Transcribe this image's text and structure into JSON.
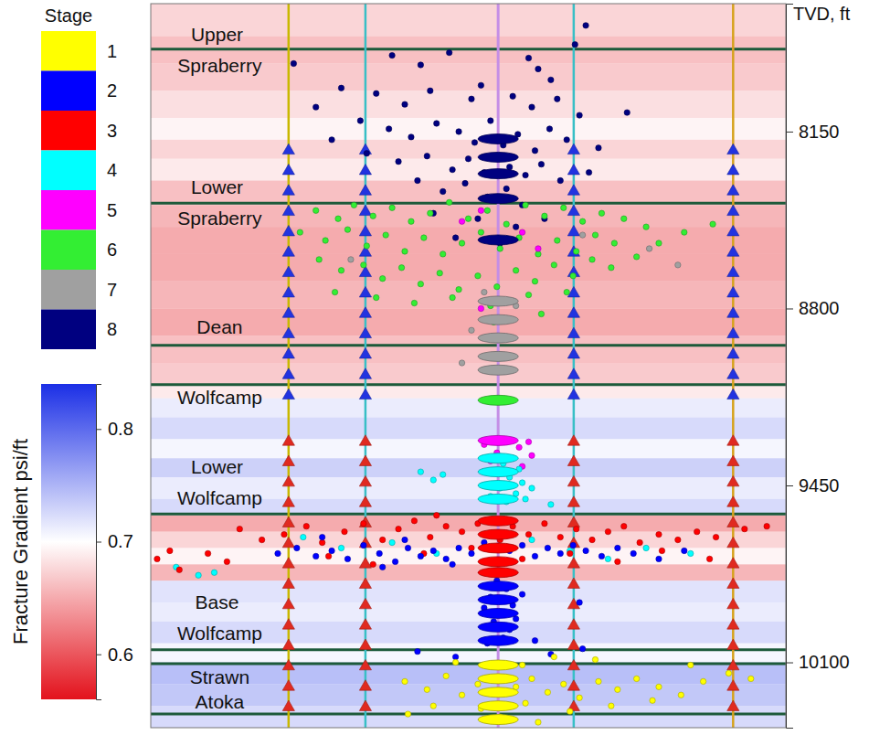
{
  "chart_data": {
    "type": "scatter",
    "y_label": "TVD, ft",
    "xlim": [
      0,
      100
    ],
    "ylim": [
      7680,
      10340
    ],
    "yticks": [
      8150,
      8800,
      9450,
      10100
    ],
    "tick_labels": "y",
    "legend": "left",
    "legend_title": "Stage",
    "marker": "circle",
    "series": [
      {
        "name": "1",
        "color": "#ffff00",
        "x": [
          40.0,
          43.5,
          46.5,
          49.0,
          51.5,
          57.5,
          60.0,
          62.5,
          65.0,
          67.5,
          70.5,
          73.5,
          76.5,
          80.0,
          83.5,
          87.0,
          91.0,
          94.5,
          44.5,
          52.0,
          59.0,
          66.0,
          72.5,
          79.0,
          58.5,
          63.5,
          70.0,
          48.0,
          85.0,
          55.0,
          61.0,
          40.5
        ],
        "y": [
          10170,
          10200,
          10150,
          10220,
          10180,
          10190,
          10160,
          10210,
          10180,
          10230,
          10170,
          10200,
          10160,
          10190,
          10220,
          10170,
          10140,
          10160,
          10260,
          10270,
          10250,
          10280,
          10260,
          10240,
          10110,
          10080,
          10090,
          10100,
          10110,
          10300,
          10320,
          10290
        ],
        "perforations": [
          10110,
          10160,
          10210,
          10260,
          10310
        ]
      },
      {
        "name": "2",
        "color": "#0000ff",
        "x": [
          20.0,
          23.0,
          26.0,
          28.5,
          31.0,
          33.5,
          36.0,
          38.5,
          40.5,
          42.5,
          44.5,
          46.5,
          48.5,
          50.5,
          52.5,
          56.5,
          58.5,
          60.5,
          62.5,
          64.5,
          66.5,
          68.5,
          71.0,
          73.5,
          76.0,
          80.0,
          84.0,
          40.0,
          47.5,
          36.5,
          27.0,
          54.5,
          56.0,
          53.5,
          57.0,
          55.0,
          54.0,
          56.5,
          55.5,
          53.0,
          57.5,
          52.5,
          58.5,
          60.5,
          42.0,
          48.0,
          63.0,
          68.0,
          67.5
        ],
        "y": [
          9700,
          9680,
          9710,
          9690,
          9720,
          9670,
          9700,
          9730,
          9680,
          9710,
          9690,
          9720,
          9680,
          9700,
          9660,
          9690,
          9670,
          9710,
          9680,
          9700,
          9670,
          9690,
          9710,
          9680,
          9700,
          9720,
          9690,
          9650,
          9740,
          9750,
          9640,
          9800,
          9830,
          9860,
          9890,
          9920,
          9950,
          9980,
          10010,
          10030,
          9940,
          9900,
          9850,
          10020,
          10060,
          10080,
          10070,
          10050,
          9880
        ],
        "perforations": [
          9820,
          9870,
          9920,
          9970,
          10020
        ]
      },
      {
        "name": "3",
        "color": "#ff0000",
        "x": [
          1.0,
          4.5,
          3.0,
          14.0,
          17.5,
          21.0,
          24.5,
          27.0,
          30.5,
          33.5,
          36.5,
          39.0,
          41.5,
          44.0,
          46.5,
          49.0,
          51.5,
          57.0,
          59.5,
          62.0,
          64.5,
          67.0,
          69.5,
          72.0,
          74.5,
          77.0,
          80.0,
          83.0,
          86.0,
          89.0,
          93.5,
          97.0,
          9.0,
          12.0,
          28.0,
          35.0,
          43.0,
          50.5,
          58.5,
          66.0,
          73.5,
          80.5,
          88.0,
          45.0,
          55.0
        ],
        "y": [
          9720,
          9760,
          9690,
          9610,
          9650,
          9630,
          9600,
          9660,
          9620,
          9590,
          9650,
          9610,
          9580,
          9640,
          9600,
          9620,
          9590,
          9600,
          9630,
          9590,
          9640,
          9610,
          9650,
          9620,
          9600,
          9660,
          9630,
          9650,
          9620,
          9640,
          9610,
          9600,
          9700,
          9730,
          9710,
          9740,
          9700,
          9680,
          9720,
          9700,
          9730,
          9690,
          9720,
          9560,
          9650
        ],
        "perforations": [
          9580,
          9630,
          9680,
          9730,
          9770
        ]
      },
      {
        "name": "4",
        "color": "#00ffff",
        "x": [
          54.0,
          56.5,
          58.5,
          55.0,
          57.5,
          53.5,
          59.0,
          56.0,
          55.5,
          58.0,
          42.5,
          44.5,
          46.0,
          52.5,
          60.0,
          7.5,
          10.0,
          4.0,
          24.0,
          30.0,
          38.0,
          45.0,
          60.0,
          66.0,
          72.0,
          78.0,
          85.0,
          63.0
        ],
        "y": [
          9400,
          9420,
          9440,
          9460,
          9480,
          9490,
          9500,
          9510,
          9370,
          9390,
          9400,
          9430,
          9410,
          9450,
          9460,
          9780,
          9770,
          9750,
          9640,
          9680,
          9660,
          9700,
          9650,
          9690,
          9720,
          9680,
          9700,
          9520
        ],
        "perforations": [
          9350,
          9400,
          9450,
          9500
        ]
      },
      {
        "name": "5",
        "color": "#ff00ff",
        "x": [
          52.0,
          58.5,
          61.0,
          49.0,
          56.0,
          58.0,
          54.5,
          57.0,
          59.5,
          52.5,
          53.5,
          58.5,
          52.0,
          55.5,
          60.0
        ],
        "y": [
          8440,
          8520,
          8580,
          8480,
          9290,
          9310,
          9330,
          9350,
          9290,
          9300,
          9360,
          9380,
          8800,
          8910,
          9340
        ],
        "perforations": [
          9285
        ]
      },
      {
        "name": "6",
        "color": "#33ee33",
        "x": [
          26.0,
          29.5,
          32.0,
          35.0,
          38.0,
          41.0,
          44.0,
          47.0,
          50.0,
          53.0,
          56.0,
          59.0,
          62.0,
          65.0,
          68.0,
          71.0,
          74.5,
          78.0,
          80.0,
          23.5,
          27.5,
          31.0,
          34.0,
          37.0,
          40.0,
          43.0,
          46.0,
          49.0,
          52.0,
          55.0,
          58.0,
          61.0,
          64.0,
          67.0,
          70.0,
          73.0,
          76.5,
          26.5,
          30.0,
          33.5,
          36.5,
          39.5,
          42.5,
          45.5,
          48.5,
          51.5,
          54.5,
          57.5,
          60.5,
          63.5,
          66.5,
          69.5,
          72.5,
          29.0,
          35.5,
          41.5,
          47.5,
          53.5,
          59.5,
          65.5,
          84.0,
          88.5,
          61.5,
          54.0
        ],
        "y": [
          8440,
          8470,
          8420,
          8460,
          8430,
          8480,
          8450,
          8410,
          8470,
          8440,
          8490,
          8420,
          8460,
          8430,
          8480,
          8450,
          8470,
          8500,
          8560,
          8520,
          8550,
          8510,
          8570,
          8530,
          8590,
          8540,
          8600,
          8560,
          8520,
          8580,
          8540,
          8600,
          8550,
          8590,
          8530,
          8560,
          8610,
          8620,
          8660,
          8640,
          8690,
          8650,
          8710,
          8670,
          8730,
          8680,
          8720,
          8660,
          8700,
          8640,
          8680,
          8620,
          8650,
          8740,
          8760,
          8780,
          8760,
          8790,
          8750,
          8740,
          8520,
          8490,
          8820,
          8850
        ],
        "perforations": [
          9137
        ]
      },
      {
        "name": "7",
        "color": "#a0a0a0",
        "x": [
          52.5,
          57.5,
          50.5,
          68.0,
          78.5,
          49.0,
          83.0,
          31.5
        ],
        "y": [
          8740,
          8790,
          8880,
          8530,
          8580,
          9000,
          8640,
          8620
        ],
        "perforations": [
          8773,
          8841,
          8908,
          8976,
          9026
        ]
      },
      {
        "name": "8",
        "color": "#000080",
        "x": [
          38.0,
          42.5,
          47.0,
          59.5,
          61.0,
          63.0,
          66.8,
          68.5,
          22.5,
          30.0,
          35.5,
          40.0,
          44.0,
          50.5,
          52.0,
          57.0,
          60.0,
          64.0,
          67.5,
          26.0,
          33.0,
          37.5,
          41.0,
          45.0,
          48.5,
          51.0,
          53.5,
          55.5,
          57.8,
          60.5,
          62.8,
          65.5,
          70.5,
          34.0,
          39.0,
          43.5,
          47.5,
          50.0,
          52.5,
          56.5,
          59.0,
          61.5,
          64.5,
          69.0,
          42.0,
          46.0,
          49.5,
          53.0,
          56.0,
          58.5,
          44.5,
          51.5,
          57.5,
          62.0,
          48.0,
          55.0,
          75.0,
          28.5
        ],
        "y": [
          7870,
          7905,
          7860,
          7880,
          7920,
          7960,
          7830,
          7760,
          7900,
          7990,
          8010,
          8050,
          8000,
          8030,
          7980,
          8020,
          8060,
          8030,
          8090,
          8060,
          8110,
          8140,
          8170,
          8120,
          8150,
          8190,
          8110,
          8200,
          8160,
          8220,
          8140,
          8180,
          8210,
          8230,
          8260,
          8240,
          8290,
          8250,
          8300,
          8280,
          8310,
          8270,
          8330,
          8300,
          8330,
          8370,
          8340,
          8390,
          8360,
          8420,
          8450,
          8470,
          8500,
          8470,
          8540,
          8560,
          8080,
          8180
        ],
        "perforations": [
          8177,
          8244,
          8305,
          8396,
          8548
        ]
      }
    ],
    "formations": [
      {
        "name": "Upper Spraberry",
        "tvd": 7847,
        "label_tvd": 7850
      },
      {
        "name": "Lower Spraberry",
        "tvd": 8413,
        "label_tvd": 8410
      },
      {
        "name": "Dean",
        "tvd": 8935,
        "label_tvd": 8868
      },
      {
        "name": "Wolfcamp",
        "tvd": 9080,
        "label_tvd": 9127
      },
      {
        "name": "Lower Wolfcamp",
        "tvd": 9555,
        "label_tvd": 9440
      },
      {
        "name": "Base Wolfcamp",
        "tvd": 10054,
        "label_tvd": 9936
      },
      {
        "name": "Strawn",
        "tvd": 10105,
        "label_tvd": 10155
      },
      {
        "name": "Atoka",
        "tvd": 10290,
        "label_tvd": 10246
      }
    ],
    "fracture_gradient": {
      "title": "Fracture Gradient psi/ft",
      "range": [
        0.56,
        0.84
      ],
      "ticks": [
        0.6,
        0.7,
        0.8
      ],
      "tvd_edges": [
        7680,
        7800,
        7900,
        8000,
        8100,
        8180,
        8250,
        8330,
        8420,
        8500,
        8600,
        8700,
        8800,
        8900,
        9000,
        9080,
        9130,
        9200,
        9280,
        9350,
        9420,
        9500,
        9560,
        9620,
        9680,
        9740,
        9800,
        9880,
        9950,
        10030,
        10100,
        10180,
        10260,
        10340
      ],
      "values": [
        0.66,
        0.64,
        0.65,
        0.67,
        0.69,
        0.66,
        0.68,
        0.64,
        0.63,
        0.62,
        0.62,
        0.63,
        0.62,
        0.64,
        0.65,
        0.68,
        0.72,
        0.74,
        0.71,
        0.75,
        0.72,
        0.74,
        0.62,
        0.66,
        0.69,
        0.63,
        0.73,
        0.72,
        0.74,
        0.71,
        0.77,
        0.76,
        0.74
      ]
    },
    "monitor_wells": {
      "x": [
        21.7,
        33.8,
        66.6,
        91.7
      ],
      "colors": [
        "#c9b800",
        "#38bfc6",
        "#38bfc6",
        "#d6a21c"
      ]
    },
    "treatment_well": {
      "x": 54.7,
      "color": "#c48ee6"
    },
    "receivers": [
      {
        "color": "#2233e0",
        "tvd": [
          8220,
          8295,
          8370,
          8445,
          8520,
          8595,
          8670,
          8745,
          8820,
          8895,
          8970,
          9045,
          9120
        ]
      },
      {
        "color": "#e02a20",
        "tvd": [
          9290,
          9365,
          9440,
          9515,
          9590,
          9665,
          9740,
          9815,
          9890,
          9965,
          10040,
          10115,
          10190,
          10265
        ]
      }
    ]
  }
}
